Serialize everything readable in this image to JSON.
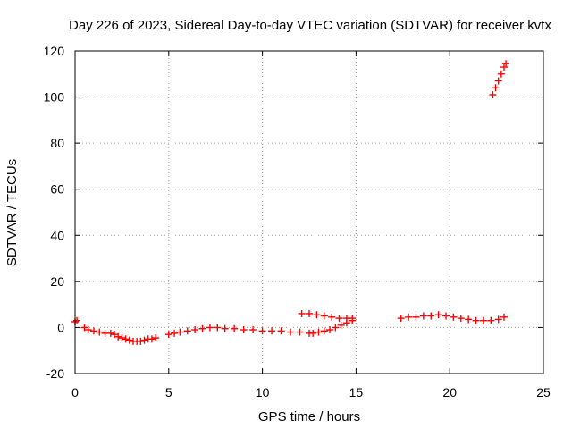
{
  "chart_data": {
    "type": "scatter",
    "title": "Day 226 of 2023, Sidereal Day-to-day VTEC variation (SDTVAR) for receiver kvtx",
    "xlabel": "GPS time / hours",
    "ylabel": "SDTVAR / TECUs",
    "xlim": [
      0,
      25
    ],
    "ylim": [
      -20,
      120
    ],
    "xticks": [
      0,
      5,
      10,
      15,
      20,
      25
    ],
    "yticks": [
      -20,
      0,
      20,
      40,
      60,
      80,
      100,
      120
    ],
    "grid": true,
    "marker": "plus",
    "color": "#ff0000",
    "series": [
      {
        "points": [
          [
            0.0,
            2.5
          ],
          [
            0.1,
            3.0
          ],
          [
            0.5,
            0.0
          ],
          [
            0.7,
            -1.0
          ],
          [
            1.0,
            -1.5
          ],
          [
            1.3,
            -2.0
          ],
          [
            1.6,
            -2.5
          ],
          [
            1.9,
            -2.5
          ],
          [
            2.1,
            -3.0
          ],
          [
            2.3,
            -4.0
          ],
          [
            2.5,
            -4.5
          ],
          [
            2.7,
            -5.0
          ],
          [
            2.9,
            -5.5
          ],
          [
            3.1,
            -6.0
          ],
          [
            3.3,
            -6.0
          ],
          [
            3.5,
            -6.0
          ],
          [
            3.7,
            -5.5
          ],
          [
            3.9,
            -5.0
          ],
          [
            4.1,
            -5.0
          ],
          [
            4.3,
            -4.5
          ],
          [
            5.0,
            -3.0
          ],
          [
            5.3,
            -2.5
          ],
          [
            5.6,
            -2.0
          ],
          [
            6.0,
            -1.5
          ],
          [
            6.4,
            -1.0
          ],
          [
            6.8,
            -0.5
          ],
          [
            7.2,
            0.0
          ],
          [
            7.6,
            0.0
          ],
          [
            8.0,
            -0.5
          ],
          [
            8.5,
            -0.5
          ],
          [
            9.0,
            -1.0
          ],
          [
            9.5,
            -1.0
          ],
          [
            10.0,
            -1.5
          ],
          [
            10.5,
            -1.5
          ],
          [
            11.0,
            -1.5
          ],
          [
            11.5,
            -2.0
          ],
          [
            12.0,
            -2.0
          ],
          [
            12.5,
            -2.5
          ],
          [
            12.7,
            -2.5
          ],
          [
            13.0,
            -2.0
          ],
          [
            13.3,
            -1.5
          ],
          [
            13.6,
            -1.0
          ],
          [
            13.9,
            0.0
          ],
          [
            14.2,
            1.0
          ],
          [
            14.5,
            2.0
          ],
          [
            14.8,
            3.0
          ],
          [
            12.1,
            6.0
          ],
          [
            12.5,
            6.0
          ],
          [
            12.9,
            5.5
          ],
          [
            13.3,
            5.0
          ],
          [
            13.7,
            4.5
          ],
          [
            14.1,
            4.0
          ],
          [
            14.5,
            4.0
          ],
          [
            14.8,
            4.0
          ],
          [
            17.4,
            4.0
          ],
          [
            17.8,
            4.5
          ],
          [
            18.2,
            4.5
          ],
          [
            18.6,
            5.0
          ],
          [
            19.0,
            5.0
          ],
          [
            19.4,
            5.5
          ],
          [
            19.8,
            5.0
          ],
          [
            20.2,
            4.5
          ],
          [
            20.6,
            4.0
          ],
          [
            21.0,
            3.5
          ],
          [
            21.4,
            3.0
          ],
          [
            21.8,
            3.0
          ],
          [
            22.2,
            3.0
          ],
          [
            22.6,
            3.5
          ],
          [
            22.9,
            4.5
          ],
          [
            22.3,
            101.0
          ],
          [
            22.45,
            104.0
          ],
          [
            22.6,
            107.0
          ],
          [
            22.75,
            110.0
          ],
          [
            22.9,
            113.0
          ],
          [
            23.0,
            114.5
          ]
        ]
      }
    ]
  }
}
